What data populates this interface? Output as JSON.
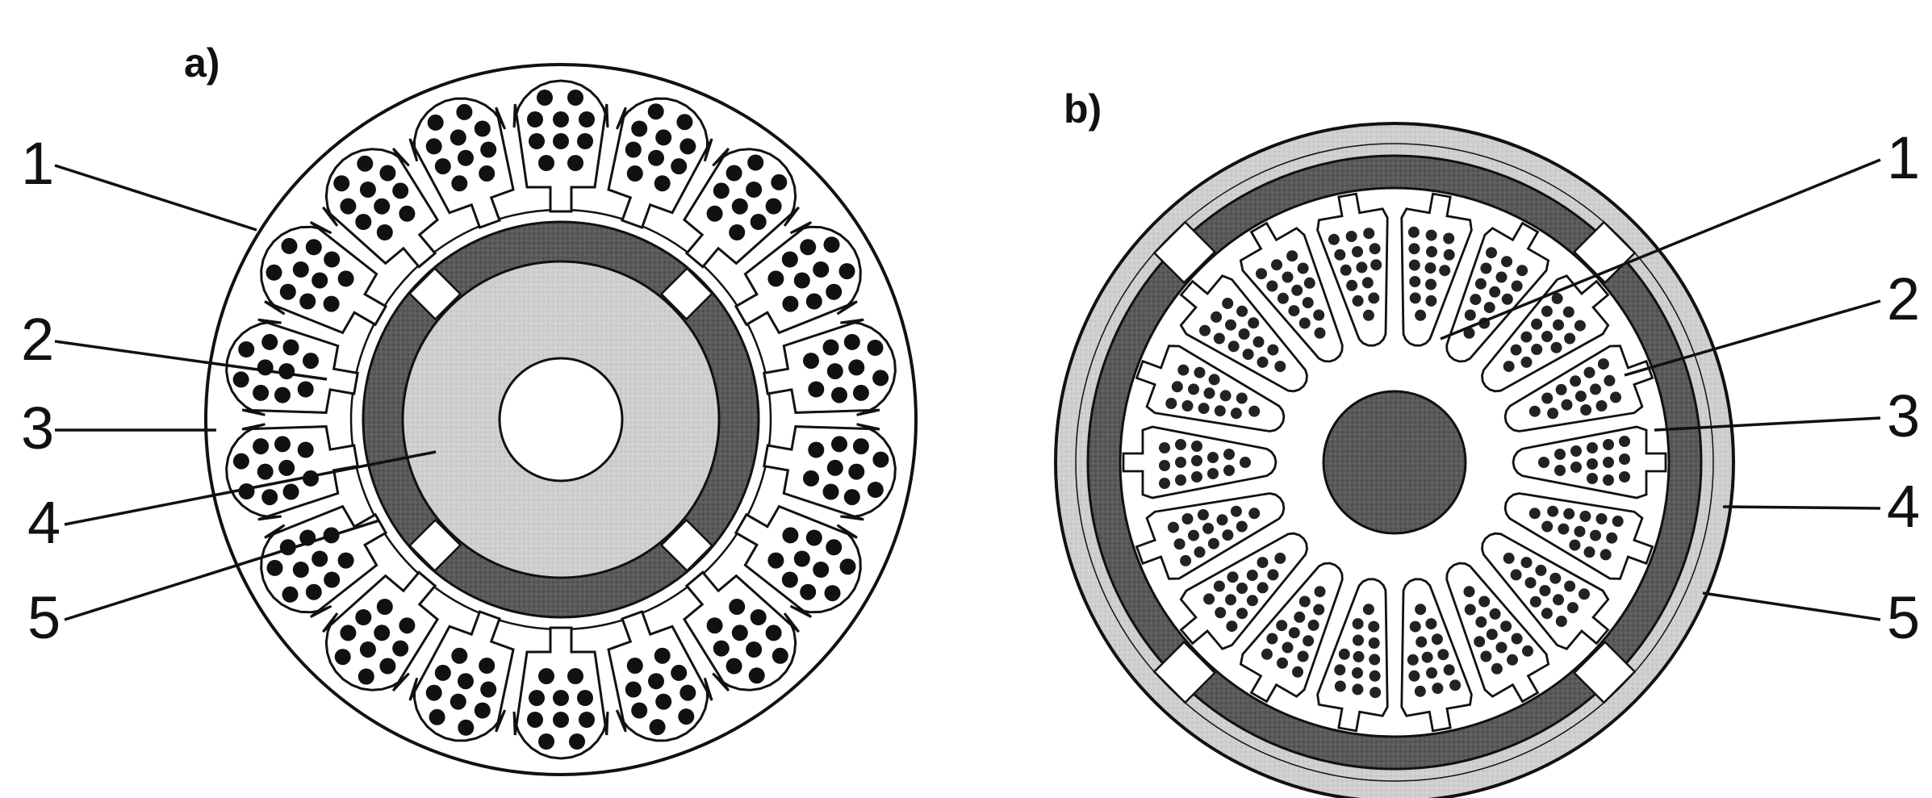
{
  "panels": [
    {
      "label": "a)",
      "callouts": [
        "1",
        "2",
        "3",
        "4",
        "5"
      ]
    },
    {
      "label": "b)",
      "callouts": [
        "1",
        "2",
        "3",
        "4",
        "5"
      ]
    }
  ],
  "colors": {
    "ink": "#111111",
    "magnet_dark": "#555555",
    "core_light": "#cccccc",
    "yoke_light": "#d2d2d2",
    "shaft": "#777777",
    "background": "#ffffff"
  }
}
